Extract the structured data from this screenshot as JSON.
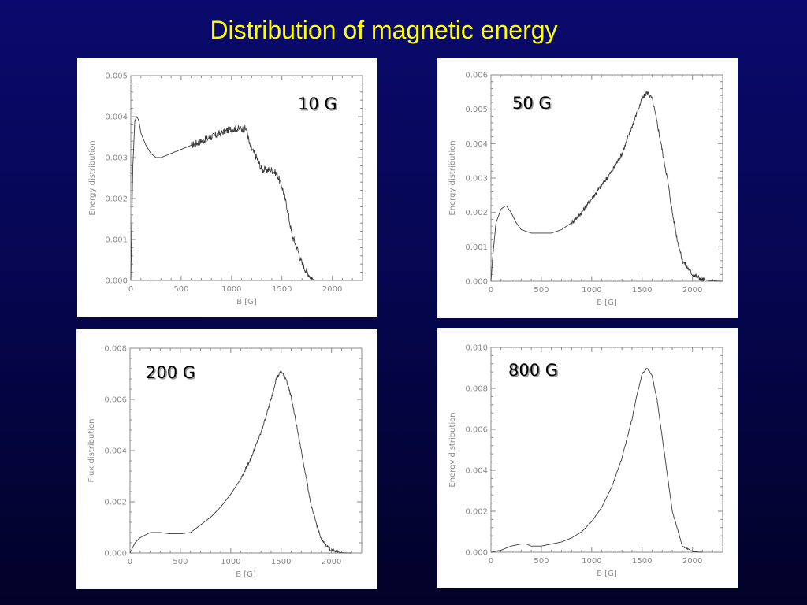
{
  "slide": {
    "title": "Distribution of magnetic energy"
  },
  "chart_data": [
    {
      "id": "p10",
      "type": "line",
      "label": "10 G",
      "xlabel": "B [G]",
      "ylabel": "Energy distribution",
      "xlim": [
        0,
        2300
      ],
      "ylim": [
        0,
        0.005
      ],
      "xticks": [
        0,
        500,
        1000,
        1500,
        2000
      ],
      "xtick_labels": [
        "0",
        "500",
        "1000",
        "1500",
        "2000"
      ],
      "yticks": [
        0,
        0.001,
        0.002,
        0.003,
        0.004,
        0.005
      ],
      "ytick_labels": [
        "0.000",
        "0.001",
        "0.002",
        "0.003",
        "0.004",
        "0.005"
      ],
      "grid": false,
      "noise": 9e-05,
      "noise_start": 600,
      "x": [
        0,
        20,
        40,
        60,
        80,
        100,
        150,
        200,
        250,
        300,
        400,
        500,
        600,
        700,
        800,
        900,
        1000,
        1100,
        1150,
        1180,
        1200,
        1250,
        1300,
        1350,
        1400,
        1450,
        1500,
        1550,
        1600,
        1650,
        1700,
        1750,
        1800,
        1820
      ],
      "y": [
        0,
        0.0028,
        0.0039,
        0.004,
        0.0039,
        0.0036,
        0.0033,
        0.0031,
        0.003,
        0.003,
        0.0031,
        0.0032,
        0.0033,
        0.0034,
        0.0035,
        0.0036,
        0.0037,
        0.0037,
        0.0037,
        0.0033,
        0.0032,
        0.003,
        0.0027,
        0.0027,
        0.0027,
        0.0026,
        0.0023,
        0.0018,
        0.0011,
        0.0008,
        0.0004,
        0.0002,
        5e-05,
        0
      ]
    },
    {
      "id": "p50",
      "type": "line",
      "label": "50 G",
      "xlabel": "B [G]",
      "ylabel": "Energy distribution",
      "xlim": [
        0,
        2300
      ],
      "ylim": [
        0,
        0.006
      ],
      "xticks": [
        0,
        500,
        1000,
        1500,
        2000
      ],
      "xtick_labels": [
        "0",
        "500",
        "1000",
        "1500",
        "2000"
      ],
      "yticks": [
        0,
        0.001,
        0.002,
        0.003,
        0.004,
        0.005,
        0.006
      ],
      "ytick_labels": [
        "0.000",
        "0.001",
        "0.002",
        "0.003",
        "0.004",
        "0.005",
        "0.006"
      ],
      "grid": false,
      "noise": 7e-05,
      "noise_start": 800,
      "x": [
        0,
        20,
        50,
        100,
        150,
        200,
        250,
        300,
        400,
        500,
        600,
        700,
        800,
        900,
        1000,
        1100,
        1200,
        1300,
        1400,
        1500,
        1550,
        1600,
        1650,
        1700,
        1750,
        1800,
        1850,
        1900,
        2000,
        2100,
        2200,
        2300
      ],
      "y": [
        0,
        0.0008,
        0.0017,
        0.0021,
        0.0022,
        0.002,
        0.0017,
        0.0015,
        0.0014,
        0.0014,
        0.0014,
        0.0015,
        0.0017,
        0.002,
        0.0024,
        0.0028,
        0.0032,
        0.0037,
        0.0045,
        0.0053,
        0.0055,
        0.0053,
        0.0046,
        0.0038,
        0.003,
        0.002,
        0.0012,
        0.0006,
        0.0002,
        5e-05,
        1e-05,
        0
      ]
    },
    {
      "id": "p200",
      "type": "line",
      "label": "200 G",
      "xlabel": "B [G]",
      "ylabel": "Flux distribution",
      "xlim": [
        0,
        2300
      ],
      "ylim": [
        0,
        0.008
      ],
      "xticks": [
        0,
        500,
        1000,
        1500,
        2000
      ],
      "xtick_labels": [
        "0",
        "500",
        "1000",
        "1500",
        "2000"
      ],
      "yticks": [
        0,
        0.002,
        0.004,
        0.006,
        0.008
      ],
      "ytick_labels": [
        "0.000",
        "0.002",
        "0.004",
        "0.006",
        "0.008"
      ],
      "grid": false,
      "noise": 6e-05,
      "noise_start": 1100,
      "x": [
        0,
        50,
        100,
        150,
        200,
        300,
        400,
        500,
        600,
        700,
        800,
        900,
        1000,
        1100,
        1200,
        1300,
        1400,
        1450,
        1500,
        1550,
        1600,
        1700,
        1800,
        1900,
        2000,
        2100,
        2200
      ],
      "y": [
        0,
        0.0004,
        0.0006,
        0.0007,
        0.0008,
        0.0008,
        0.00075,
        0.00075,
        0.0008,
        0.0011,
        0.0014,
        0.0018,
        0.0023,
        0.0029,
        0.0037,
        0.0047,
        0.006,
        0.0068,
        0.0071,
        0.0068,
        0.0061,
        0.004,
        0.0018,
        0.0005,
        0.0001,
        1e-05,
        0
      ]
    },
    {
      "id": "p800",
      "type": "line",
      "label": "800 G",
      "xlabel": "B [G]",
      "ylabel": "Energy distribution",
      "xlim": [
        0,
        2300
      ],
      "ylim": [
        0,
        0.01
      ],
      "xticks": [
        0,
        500,
        1000,
        1500,
        2000
      ],
      "xtick_labels": [
        "0",
        "500",
        "1000",
        "1500",
        "2000"
      ],
      "yticks": [
        0,
        0.002,
        0.004,
        0.006,
        0.008,
        0.01
      ],
      "ytick_labels": [
        "0.000",
        "0.002",
        "0.004",
        "0.006",
        "0.008",
        "0.010"
      ],
      "grid": false,
      "noise": 3e-05,
      "noise_start": 1200,
      "x": [
        0,
        100,
        200,
        300,
        350,
        400,
        500,
        600,
        700,
        800,
        900,
        1000,
        1100,
        1200,
        1300,
        1400,
        1450,
        1500,
        1550,
        1600,
        1650,
        1700,
        1800,
        1900,
        2000,
        2100
      ],
      "y": [
        0,
        0.0001,
        0.0003,
        0.0004,
        0.0004,
        0.0003,
        0.0003,
        0.0004,
        0.0005,
        0.0007,
        0.001,
        0.0015,
        0.0022,
        0.0032,
        0.0046,
        0.0065,
        0.0077,
        0.0087,
        0.009,
        0.0086,
        0.0074,
        0.0056,
        0.002,
        0.0003,
        3e-05,
        0
      ]
    }
  ]
}
